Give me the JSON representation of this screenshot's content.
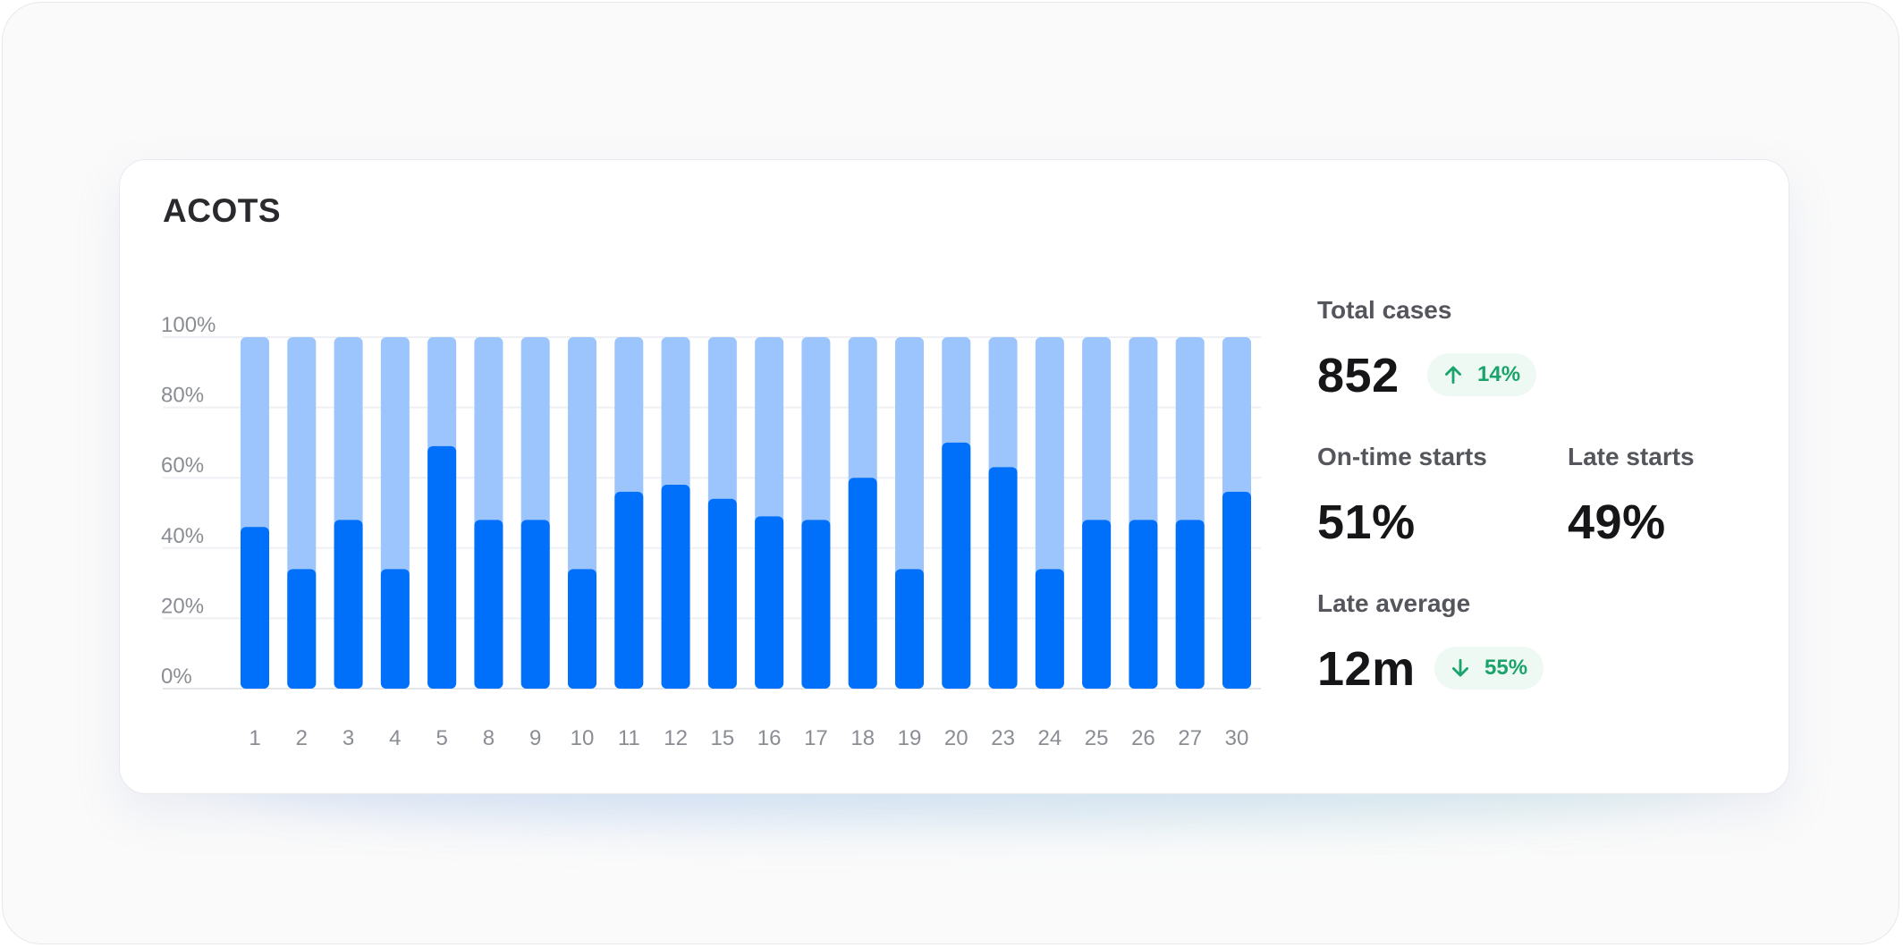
{
  "title": "ACOTS",
  "chart_data": {
    "type": "bar",
    "stacked": true,
    "categories": [
      "1",
      "2",
      "3",
      "4",
      "5",
      "8",
      "9",
      "10",
      "11",
      "12",
      "15",
      "16",
      "17",
      "18",
      "19",
      "20",
      "23",
      "24",
      "25",
      "26",
      "27",
      "30"
    ],
    "series": [
      {
        "values": [
          46,
          34,
          48,
          34,
          69,
          48,
          48,
          34,
          56,
          58,
          54,
          49,
          48,
          60,
          34,
          70,
          63,
          34,
          48,
          48,
          48,
          56
        ]
      },
      {
        "values": [
          54,
          66,
          52,
          66,
          31,
          52,
          52,
          66,
          44,
          42,
          46,
          51,
          52,
          40,
          66,
          30,
          37,
          66,
          52,
          52,
          52,
          44
        ]
      }
    ],
    "y_ticks": [
      "0%",
      "20%",
      "40%",
      "60%",
      "80%",
      "100%"
    ],
    "ylim": [
      0,
      100
    ],
    "grid": true,
    "colors": {
      "on_time": "#0070fa",
      "late": "#9bc5fc",
      "grid": "#eef0f3"
    }
  },
  "stats": {
    "total_cases": {
      "label": "Total cases",
      "value": "852",
      "delta": "14%",
      "direction": "up-arrow-icon"
    },
    "on_time": {
      "label": "On-time starts",
      "value": "51%"
    },
    "late": {
      "label": "Late starts",
      "value": "49%"
    },
    "late_average": {
      "label": "Late average",
      "value": "12m",
      "delta": "55%",
      "direction": "down-arrow-icon"
    }
  }
}
